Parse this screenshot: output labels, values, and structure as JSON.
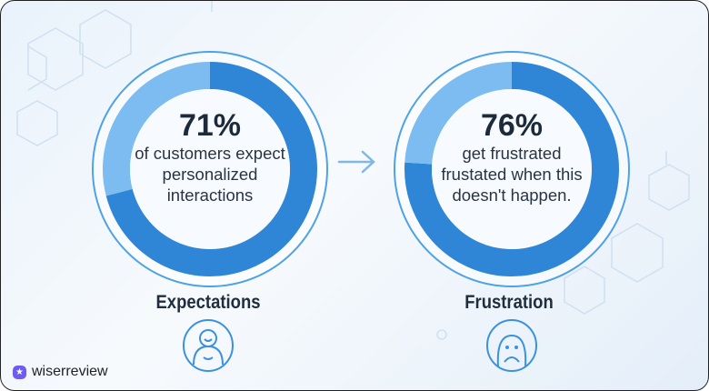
{
  "chart_data": [
    {
      "type": "pie",
      "style": "donut",
      "value": 71,
      "unit": "%",
      "percent_label": "71%",
      "description": "of customers expect personalized interactions",
      "category": "Expectations",
      "icon": "smiling-person-icon",
      "color": "#2f86d6",
      "remainder_color": "#7cbcf0"
    },
    {
      "type": "pie",
      "style": "donut",
      "value": 76,
      "unit": "%",
      "percent_label": "76%",
      "description": "get frustrated frustated when this doesn't happen.",
      "category": "Frustration",
      "icon": "sad-person-icon",
      "color": "#2f86d6",
      "remainder_color": "#7cbcf0"
    }
  ],
  "arrow_icon": "arrow-right-icon",
  "brand": {
    "name": "wiserreview",
    "icon": "star-badge-icon",
    "color": "#6e5cf0"
  }
}
